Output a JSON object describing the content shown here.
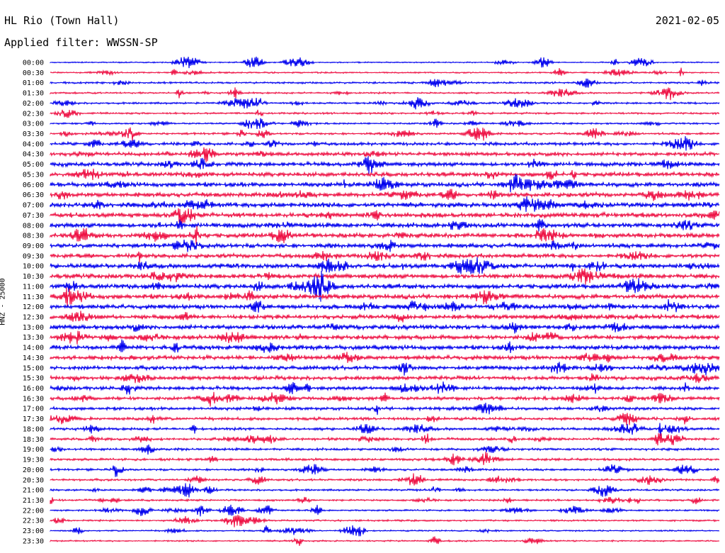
{
  "header": {
    "station": "HL Rio (Town Hall)",
    "filter": "Applied filter: WWSSN-SP",
    "date": "2021-02-05"
  },
  "chart_data": {
    "type": "line",
    "title": "HL Rio (Town Hall)",
    "subtitle": "Applied filter: WWSSN-SP",
    "ylabel": "HNZ - 25000",
    "xlabel": "",
    "date": "2021-02-05",
    "row_labels": [
      "00:00",
      "00:30",
      "01:00",
      "01:30",
      "02:00",
      "02:30",
      "03:00",
      "03:30",
      "04:00",
      "04:30",
      "05:00",
      "05:30",
      "06:00",
      "06:30",
      "07:00",
      "07:30",
      "08:00",
      "08:30",
      "09:00",
      "09:30",
      "10:00",
      "10:30",
      "11:00",
      "11:30",
      "12:00",
      "12:30",
      "13:00",
      "13:30",
      "14:00",
      "14:30",
      "15:00",
      "15:30",
      "16:00",
      "16:30",
      "17:00",
      "17:30",
      "18:00",
      "18:30",
      "19:00",
      "19:30",
      "20:00",
      "20:30",
      "21:00",
      "21:30",
      "22:00",
      "22:30",
      "23:00",
      "23:30"
    ],
    "noise_level": [
      1.0,
      1.2,
      1.6,
      1.4,
      1.6,
      1.6,
      1.4,
      1.8,
      2.6,
      3.0,
      3.4,
      3.6,
      3.8,
      3.8,
      4.0,
      4.0,
      4.0,
      3.8,
      3.8,
      3.6,
      3.8,
      4.0,
      4.0,
      4.0,
      3.8,
      3.8,
      3.8,
      3.6,
      3.8,
      3.6,
      3.4,
      3.2,
      3.0,
      2.8,
      2.6,
      2.4,
      2.2,
      2.2,
      2.0,
      2.0,
      1.8,
      1.8,
      1.6,
      1.6,
      1.4,
      1.4,
      1.2,
      1.2
    ],
    "colors": [
      "#0000ee",
      "#ee1144"
    ],
    "grid": false
  }
}
